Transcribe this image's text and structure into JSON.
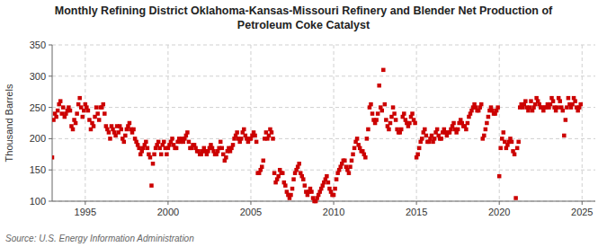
{
  "chart_data": {
    "type": "scatter",
    "title": "Monthly Refining District Oklahoma-Kansas-Missouri Refinery and Blender Net Production of\nPetroleum Coke Catalyst",
    "y_label": "Thousand Barrels",
    "source": "Source: U.S. Energy Information Administration",
    "color": "#cc0000",
    "marker": "square",
    "grid": true,
    "xlim": [
      1993.0,
      2025.8
    ],
    "xticks": [
      1995,
      2000,
      2005,
      2010,
      2015,
      2020,
      2025
    ],
    "ylim": [
      100,
      350
    ],
    "yticks": [
      100,
      150,
      200,
      250,
      300,
      350
    ],
    "x": [
      1993,
      1993.083333333333,
      1993.166666666667,
      1993.25,
      1993.333333333333,
      1993.416666666667,
      1993.5,
      1993.583333333333,
      1993.666666666667,
      1993.75,
      1993.833333333333,
      1993.916666666667,
      1994,
      1994.083333333333,
      1994.166666666667,
      1994.25,
      1994.333333333333,
      1994.416666666667,
      1994.5,
      1994.583333333333,
      1994.666666666667,
      1994.75,
      1994.833333333333,
      1994.916666666667,
      1995,
      1995.083333333333,
      1995.166666666667,
      1995.25,
      1995.333333333333,
      1995.416666666667,
      1995.5,
      1995.583333333333,
      1995.666666666667,
      1995.75,
      1995.833333333333,
      1995.916666666667,
      1996,
      1996.083333333333,
      1996.166666666667,
      1996.25,
      1996.333333333333,
      1996.416666666667,
      1996.5,
      1996.583333333333,
      1996.666666666667,
      1996.75,
      1996.833333333333,
      1996.916666666667,
      1997,
      1997.083333333333,
      1997.166666666667,
      1997.25,
      1997.333333333333,
      1997.416666666667,
      1997.5,
      1997.583333333333,
      1997.666666666667,
      1997.75,
      1997.833333333333,
      1997.916666666667,
      1998,
      1998.083333333333,
      1998.166666666667,
      1998.25,
      1998.333333333333,
      1998.416666666667,
      1998.5,
      1998.583333333333,
      1998.666666666667,
      1998.75,
      1998.833333333333,
      1998.916666666667,
      1999,
      1999.083333333333,
      1999.166666666667,
      1999.25,
      1999.333333333333,
      1999.416666666667,
      1999.5,
      1999.583333333333,
      1999.666666666667,
      1999.75,
      1999.833333333333,
      1999.916666666667,
      2000,
      2000.083333333333,
      2000.166666666667,
      2000.25,
      2000.333333333333,
      2000.416666666667,
      2000.5,
      2000.583333333333,
      2000.666666666667,
      2000.75,
      2000.833333333333,
      2000.916666666667,
      2001,
      2001.083333333333,
      2001.166666666667,
      2001.25,
      2001.333333333333,
      2001.416666666667,
      2001.5,
      2001.583333333333,
      2001.666666666667,
      2001.75,
      2001.833333333333,
      2001.916666666667,
      2002,
      2002.083333333333,
      2002.166666666667,
      2002.25,
      2002.333333333333,
      2002.416666666667,
      2002.5,
      2002.583333333333,
      2002.666666666667,
      2002.75,
      2002.833333333333,
      2002.916666666667,
      2003,
      2003.083333333333,
      2003.166666666667,
      2003.25,
      2003.333333333333,
      2003.416666666667,
      2003.5,
      2003.583333333333,
      2003.666666666667,
      2003.75,
      2003.833333333333,
      2003.916666666667,
      2004,
      2004.083333333333,
      2004.166666666667,
      2004.25,
      2004.333333333333,
      2004.416666666667,
      2004.5,
      2004.583333333333,
      2004.666666666667,
      2004.75,
      2004.833333333333,
      2004.916666666667,
      2005,
      2005.083333333333,
      2005.166666666667,
      2005.25,
      2005.333333333333,
      2005.416666666667,
      2005.5,
      2005.583333333333,
      2005.666666666667,
      2005.75,
      2005.833333333333,
      2005.916666666667,
      2006,
      2006.083333333333,
      2006.166666666667,
      2006.25,
      2006.333333333333,
      2006.416666666667,
      2006.5,
      2006.583333333333,
      2006.666666666667,
      2006.75,
      2006.833333333333,
      2006.916666666667,
      2007,
      2007.083333333333,
      2007.166666666667,
      2007.25,
      2007.333333333333,
      2007.416666666667,
      2007.5,
      2007.583333333333,
      2007.666666666667,
      2007.75,
      2007.833333333333,
      2007.916666666667,
      2008,
      2008.083333333333,
      2008.166666666667,
      2008.25,
      2008.333333333333,
      2008.416666666667,
      2008.5,
      2008.583333333333,
      2008.666666666667,
      2008.75,
      2008.833333333333,
      2008.916666666667,
      2009,
      2009.083333333333,
      2009.166666666667,
      2009.25,
      2009.333333333333,
      2009.416666666667,
      2009.5,
      2009.583333333333,
      2009.666666666667,
      2009.75,
      2009.833333333333,
      2009.916666666667,
      2010,
      2010.083333333333,
      2010.166666666667,
      2010.25,
      2010.333333333333,
      2010.416666666667,
      2010.5,
      2010.583333333333,
      2010.666666666667,
      2010.75,
      2010.833333333333,
      2010.916666666667,
      2011,
      2011.083333333333,
      2011.166666666667,
      2011.25,
      2011.333333333333,
      2011.416666666667,
      2011.5,
      2011.583333333333,
      2011.666666666667,
      2011.75,
      2011.833333333333,
      2011.916666666667,
      2012,
      2012.083333333333,
      2012.166666666667,
      2012.25,
      2012.333333333333,
      2012.416666666667,
      2012.5,
      2012.583333333333,
      2012.666666666667,
      2012.75,
      2012.833333333333,
      2012.916666666667,
      2013,
      2013.083333333333,
      2013.166666666667,
      2013.25,
      2013.333333333333,
      2013.416666666667,
      2013.5,
      2013.583333333333,
      2013.666666666667,
      2013.75,
      2013.833333333333,
      2013.916666666667,
      2014,
      2014.083333333333,
      2014.166666666667,
      2014.25,
      2014.333333333333,
      2014.416666666667,
      2014.5,
      2014.583333333333,
      2014.666666666667,
      2014.75,
      2014.833333333333,
      2014.916666666667,
      2015,
      2015.083333333333,
      2015.166666666667,
      2015.25,
      2015.333333333333,
      2015.416666666667,
      2015.5,
      2015.583333333333,
      2015.666666666667,
      2015.75,
      2015.833333333333,
      2015.916666666667,
      2016,
      2016.083333333333,
      2016.166666666667,
      2016.25,
      2016.333333333333,
      2016.416666666667,
      2016.5,
      2016.583333333333,
      2016.666666666667,
      2016.75,
      2016.833333333333,
      2016.916666666667,
      2017,
      2017.083333333333,
      2017.166666666667,
      2017.25,
      2017.333333333333,
      2017.416666666667,
      2017.5,
      2017.583333333333,
      2017.666666666667,
      2017.75,
      2017.833333333333,
      2017.916666666667,
      2018,
      2018.083333333333,
      2018.166666666667,
      2018.25,
      2018.333333333333,
      2018.416666666667,
      2018.5,
      2018.583333333333,
      2018.666666666667,
      2018.75,
      2018.833333333333,
      2018.916666666667,
      2019,
      2019.083333333333,
      2019.166666666667,
      2019.25,
      2019.333333333333,
      2019.416666666667,
      2019.5,
      2019.583333333333,
      2019.666666666667,
      2019.75,
      2019.833333333333,
      2019.916666666667,
      2020,
      2020.083333333333,
      2020.166666666667,
      2020.25,
      2020.333333333333,
      2020.416666666667,
      2020.5,
      2020.583333333333,
      2020.666666666667,
      2020.75,
      2020.833333333333,
      2020.916666666667,
      2021,
      2021.083333333333,
      2021.166666666667,
      2021.25,
      2021.333333333333,
      2021.416666666667,
      2021.5,
      2021.583333333333,
      2021.666666666667,
      2021.75,
      2021.833333333333,
      2021.916666666667,
      2022,
      2022.083333333333,
      2022.166666666667,
      2022.25,
      2022.333333333333,
      2022.416666666667,
      2022.5,
      2022.583333333333,
      2022.666666666667,
      2022.75,
      2022.833333333333,
      2022.916666666667,
      2023,
      2023.083333333333,
      2023.166666666667,
      2023.25,
      2023.333333333333,
      2023.416666666667,
      2023.5,
      2023.583333333333,
      2023.666666666667,
      2023.75,
      2023.833333333333,
      2023.916666666667,
      2024,
      2024.083333333333,
      2024.166666666667,
      2024.25,
      2024.333333333333,
      2024.416666666667,
      2024.5,
      2024.583333333333,
      2024.666666666667,
      2024.75,
      2024.833333333333,
      2024.916666666667
    ],
    "values": [
      170,
      230,
      240,
      235,
      245,
      255,
      260,
      240,
      250,
      235,
      240,
      245,
      250,
      245,
      220,
      215,
      230,
      225,
      240,
      255,
      265,
      250,
      235,
      245,
      255,
      250,
      245,
      230,
      215,
      225,
      220,
      235,
      250,
      240,
      230,
      250,
      250,
      255,
      240,
      220,
      215,
      210,
      200,
      220,
      215,
      210,
      205,
      220,
      210,
      220,
      215,
      200,
      195,
      205,
      215,
      220,
      225,
      215,
      210,
      215,
      200,
      195,
      190,
      185,
      175,
      180,
      185,
      190,
      195,
      185,
      175,
      170,
      125,
      160,
      175,
      185,
      190,
      195,
      185,
      175,
      190,
      195,
      185,
      175,
      185,
      190,
      195,
      200,
      190,
      185,
      185,
      195,
      200,
      195,
      200,
      195,
      200,
      205,
      210,
      195,
      185,
      185,
      190,
      190,
      185,
      180,
      180,
      175,
      175,
      180,
      185,
      180,
      175,
      180,
      185,
      190,
      185,
      180,
      175,
      175,
      180,
      185,
      195,
      185,
      175,
      165,
      170,
      180,
      185,
      180,
      185,
      190,
      200,
      205,
      210,
      200,
      195,
      200,
      210,
      215,
      205,
      200,
      195,
      200,
      200,
      205,
      210,
      205,
      195,
      145,
      145,
      150,
      155,
      165,
      200,
      210,
      200,
      205,
      215,
      210,
      200,
      145,
      130,
      135,
      140,
      150,
      145,
      145,
      130,
      125,
      115,
      110,
      105,
      110,
      120,
      135,
      145,
      150,
      155,
      160,
      145,
      140,
      135,
      125,
      115,
      110,
      115,
      120,
      115,
      105,
      100,
      100,
      105,
      110,
      115,
      120,
      125,
      130,
      135,
      140,
      130,
      120,
      115,
      110,
      110,
      120,
      135,
      145,
      150,
      155,
      160,
      165,
      165,
      155,
      150,
      145,
      155,
      165,
      175,
      185,
      195,
      200,
      190,
      185,
      180,
      180,
      175,
      170,
      200,
      215,
      250,
      255,
      240,
      230,
      225,
      230,
      240,
      285,
      250,
      245,
      310,
      255,
      230,
      220,
      215,
      225,
      235,
      250,
      240,
      230,
      215,
      210,
      210,
      215,
      235,
      240,
      230,
      225,
      220,
      225,
      235,
      240,
      230,
      225,
      170,
      175,
      185,
      195,
      200,
      210,
      215,
      205,
      195,
      195,
      200,
      205,
      195,
      200,
      210,
      215,
      205,
      200,
      200,
      210,
      215,
      210,
      205,
      210,
      210,
      215,
      220,
      225,
      215,
      210,
      215,
      225,
      230,
      225,
      220,
      220,
      215,
      225,
      235,
      240,
      245,
      250,
      255,
      250,
      245,
      245,
      250,
      255,
      200,
      205,
      215,
      225,
      235,
      245,
      250,
      245,
      240,
      240,
      245,
      250,
      140,
      185,
      200,
      210,
      195,
      185,
      190,
      195,
      200,
      195,
      180,
      175,
      105,
      185,
      195,
      250,
      255,
      250,
      255,
      260,
      250,
      245,
      250,
      260,
      245,
      250,
      255,
      265,
      260,
      255,
      250,
      250,
      245,
      250,
      250,
      255,
      250,
      255,
      265,
      260,
      250,
      245,
      250,
      265,
      260,
      250,
      245,
      205,
      230,
      250,
      265,
      255,
      250,
      255,
      265,
      260,
      250,
      245,
      250,
      255
    ]
  }
}
